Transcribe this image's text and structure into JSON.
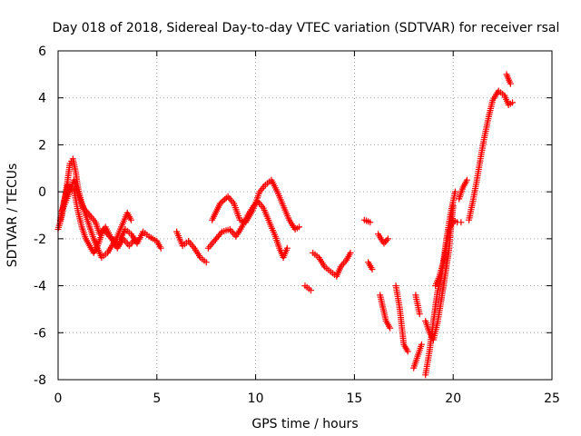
{
  "chart_data": {
    "type": "scatter",
    "title": "Day 018 of 2018, Sidereal Day-to-day VTEC variation (SDTVAR) for receiver rsal",
    "xlabel": "GPS time / hours",
    "ylabel": "SDTVAR / TECUs",
    "xlim": [
      0,
      25
    ],
    "ylim": [
      -8,
      6
    ],
    "xticks": [
      0,
      5,
      10,
      15,
      20,
      25
    ],
    "yticks": [
      -8,
      -6,
      -4,
      -2,
      0,
      2,
      4,
      6
    ],
    "grid": true,
    "marker": "+",
    "color": "#ff0000",
    "series": [
      {
        "name": "SDTVAR",
        "segments": [
          [
            [
              0.0,
              -1.6
            ],
            [
              0.2,
              -1.0
            ],
            [
              0.4,
              0.0
            ],
            [
              0.6,
              1.2
            ],
            [
              0.75,
              1.4
            ],
            [
              0.9,
              0.8
            ],
            [
              1.0,
              0.2
            ],
            [
              1.2,
              -0.5
            ],
            [
              1.4,
              -1.0
            ],
            [
              1.6,
              -1.5
            ],
            [
              1.8,
              -2.0
            ],
            [
              2.0,
              -2.4
            ],
            [
              2.2,
              -2.8
            ],
            [
              2.5,
              -2.6
            ],
            [
              2.8,
              -2.2
            ],
            [
              3.1,
              -2.1
            ],
            [
              3.4,
              -1.6
            ],
            [
              3.7,
              -1.8
            ],
            [
              4.0,
              -2.2
            ],
            [
              4.3,
              -1.7
            ],
            [
              4.6,
              -1.9
            ],
            [
              5.0,
              -2.1
            ],
            [
              5.2,
              -2.4
            ]
          ],
          [
            [
              0.1,
              -1.2
            ],
            [
              0.3,
              -0.4
            ],
            [
              0.5,
              0.3
            ],
            [
              0.8,
              0.1
            ],
            [
              1.0,
              -0.8
            ],
            [
              1.2,
              -1.5
            ],
            [
              1.4,
              -2.0
            ],
            [
              1.6,
              -2.3
            ],
            [
              1.8,
              -2.6
            ],
            [
              2.0,
              -2.3
            ],
            [
              2.3,
              -1.6
            ],
            [
              2.6,
              -1.9
            ],
            [
              2.9,
              -2.1
            ],
            [
              3.2,
              -1.5
            ],
            [
              3.5,
              -0.9
            ],
            [
              3.7,
              -1.2
            ]
          ],
          [
            [
              0.2,
              -0.8
            ],
            [
              0.5,
              -0.2
            ],
            [
              0.8,
              0.5
            ],
            [
              1.0,
              -0.1
            ],
            [
              1.3,
              -0.7
            ],
            [
              1.6,
              -1.0
            ],
            [
              1.9,
              -1.3
            ],
            [
              2.1,
              -1.8
            ],
            [
              2.4,
              -1.5
            ],
            [
              2.7,
              -2.0
            ],
            [
              3.0,
              -2.4
            ],
            [
              3.3,
              -2.0
            ],
            [
              3.6,
              -2.3
            ],
            [
              3.9,
              -2.0
            ]
          ],
          [
            [
              6.0,
              -1.7
            ],
            [
              6.3,
              -2.3
            ],
            [
              6.6,
              -2.1
            ],
            [
              6.9,
              -2.4
            ],
            [
              7.2,
              -2.8
            ],
            [
              7.5,
              -3.0
            ]
          ],
          [
            [
              7.6,
              -2.4
            ],
            [
              7.9,
              -2.1
            ],
            [
              8.3,
              -1.7
            ],
            [
              8.7,
              -1.6
            ],
            [
              9.0,
              -1.9
            ],
            [
              9.3,
              -1.5
            ],
            [
              9.6,
              -1.0
            ],
            [
              9.9,
              -0.6
            ],
            [
              10.1,
              -0.4
            ],
            [
              10.4,
              -0.7
            ],
            [
              10.7,
              -1.3
            ],
            [
              11.0,
              -1.9
            ],
            [
              11.2,
              -2.4
            ],
            [
              11.4,
              -2.8
            ],
            [
              11.6,
              -2.4
            ]
          ],
          [
            [
              7.8,
              -1.2
            ],
            [
              8.2,
              -0.5
            ],
            [
              8.6,
              -0.2
            ],
            [
              8.9,
              -0.5
            ],
            [
              9.2,
              -1.2
            ],
            [
              9.5,
              -1.3
            ],
            [
              9.9,
              -0.7
            ],
            [
              10.2,
              0.0
            ],
            [
              10.5,
              0.3
            ],
            [
              10.8,
              0.5
            ],
            [
              11.1,
              0.0
            ],
            [
              11.4,
              -0.6
            ],
            [
              11.7,
              -1.2
            ],
            [
              12.0,
              -1.6
            ],
            [
              12.2,
              -1.5
            ]
          ],
          [
            [
              12.5,
              -4.0
            ],
            [
              12.8,
              -4.2
            ]
          ],
          [
            [
              12.9,
              -2.6
            ],
            [
              13.2,
              -2.8
            ],
            [
              13.5,
              -3.2
            ],
            [
              13.8,
              -3.4
            ],
            [
              14.1,
              -3.6
            ],
            [
              14.3,
              -3.2
            ],
            [
              14.6,
              -2.9
            ],
            [
              14.8,
              -2.6
            ]
          ],
          [
            [
              15.5,
              -1.2
            ],
            [
              15.8,
              -1.3
            ]
          ],
          [
            [
              15.7,
              -3.0
            ],
            [
              15.9,
              -3.3
            ]
          ],
          [
            [
              16.2,
              -1.8
            ],
            [
              16.5,
              -2.2
            ],
            [
              16.7,
              -2.0
            ]
          ],
          [
            [
              16.3,
              -4.4
            ],
            [
              16.6,
              -5.5
            ],
            [
              16.8,
              -5.8
            ]
          ],
          [
            [
              17.1,
              -4.0
            ],
            [
              17.3,
              -5.0
            ],
            [
              17.5,
              -6.5
            ],
            [
              17.7,
              -6.8
            ]
          ],
          [
            [
              18.0,
              -7.5
            ],
            [
              18.2,
              -7.0
            ],
            [
              18.4,
              -6.5
            ]
          ],
          [
            [
              18.1,
              -4.4
            ],
            [
              18.3,
              -5.2
            ]
          ],
          [
            [
              18.6,
              -7.8
            ],
            [
              18.8,
              -6.8
            ],
            [
              19.0,
              -5.5
            ],
            [
              19.2,
              -4.3
            ],
            [
              19.4,
              -3.6
            ],
            [
              19.6,
              -2.6
            ],
            [
              19.8,
              -1.6
            ],
            [
              20.0,
              -1.2
            ],
            [
              20.2,
              -1.3
            ],
            [
              20.4,
              -1.3
            ]
          ],
          [
            [
              18.6,
              -5.5
            ],
            [
              18.8,
              -6.0
            ],
            [
              19.0,
              -6.3
            ],
            [
              19.2,
              -5.6
            ],
            [
              19.4,
              -4.6
            ],
            [
              19.6,
              -3.5
            ],
            [
              19.8,
              -2.4
            ],
            [
              19.9,
              -1.4
            ],
            [
              20.0,
              -0.6
            ]
          ],
          [
            [
              19.1,
              -4.0
            ],
            [
              19.3,
              -3.6
            ],
            [
              19.5,
              -3.0
            ],
            [
              19.7,
              -1.8
            ],
            [
              19.9,
              -0.8
            ],
            [
              20.1,
              0.0
            ]
          ],
          [
            [
              20.3,
              -0.3
            ],
            [
              20.5,
              0.2
            ],
            [
              20.7,
              0.5
            ]
          ],
          [
            [
              20.8,
              -1.2
            ],
            [
              21.0,
              -0.4
            ],
            [
              21.2,
              0.5
            ],
            [
              21.4,
              1.5
            ],
            [
              21.6,
              2.4
            ],
            [
              21.8,
              3.2
            ],
            [
              22.0,
              3.9
            ],
            [
              22.3,
              4.3
            ],
            [
              22.6,
              4.1
            ],
            [
              22.8,
              3.7
            ],
            [
              23.0,
              3.8
            ]
          ],
          [
            [
              22.7,
              5.0
            ],
            [
              22.9,
              4.6
            ]
          ]
        ]
      }
    ]
  }
}
